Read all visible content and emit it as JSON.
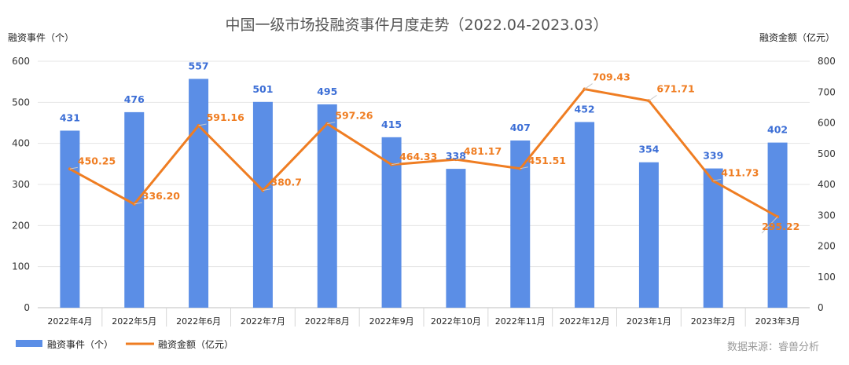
{
  "chart_data": {
    "type": "bar",
    "title": "中国一级市场投融资事件月度走势（2022.04-2023.03）",
    "y_left_label": "融资事件（个）",
    "y_right_label": "融资金额（亿元）",
    "categories": [
      "2022年4月",
      "2022年5月",
      "2022年6月",
      "2022年7月",
      "2022年8月",
      "2022年9月",
      "2022年10月",
      "2022年11月",
      "2022年12月",
      "2023年1月",
      "2023年2月",
      "2023年3月"
    ],
    "y_left_lim": [
      0,
      600
    ],
    "y_left_ticks": [
      "0",
      "100",
      "200",
      "300",
      "400",
      "500",
      "600"
    ],
    "y_right_lim": [
      0,
      800
    ],
    "y_right_ticks": [
      "0",
      "100",
      "200",
      "300",
      "400",
      "500",
      "600",
      "700",
      "800"
    ],
    "series": [
      {
        "name": "融资事件（个）",
        "type": "bar",
        "axis": "left",
        "color": "#5b8ee6",
        "values": [
          431,
          476,
          557,
          501,
          495,
          415,
          338,
          407,
          452,
          354,
          339,
          402
        ],
        "labels": [
          "431",
          "476",
          "557",
          "501",
          "495",
          "415",
          "338",
          "407",
          "452",
          "354",
          "339",
          "402"
        ]
      },
      {
        "name": "融资金额（亿元）",
        "type": "line",
        "axis": "right",
        "color": "#ef7d22",
        "values": [
          450.25,
          336.2,
          591.16,
          380.7,
          597.26,
          464.33,
          481.17,
          451.51,
          709.43,
          671.71,
          411.73,
          295.22
        ],
        "labels": [
          "450.25",
          "336.20",
          "591.16",
          "380.7",
          "597.26",
          "464.33",
          "481.17",
          "451.51",
          "709.43",
          "671.71",
          "411.73",
          "295.22"
        ]
      }
    ],
    "grid": true,
    "legend": "bottom-left",
    "source": "数据来源：睿兽分析"
  }
}
